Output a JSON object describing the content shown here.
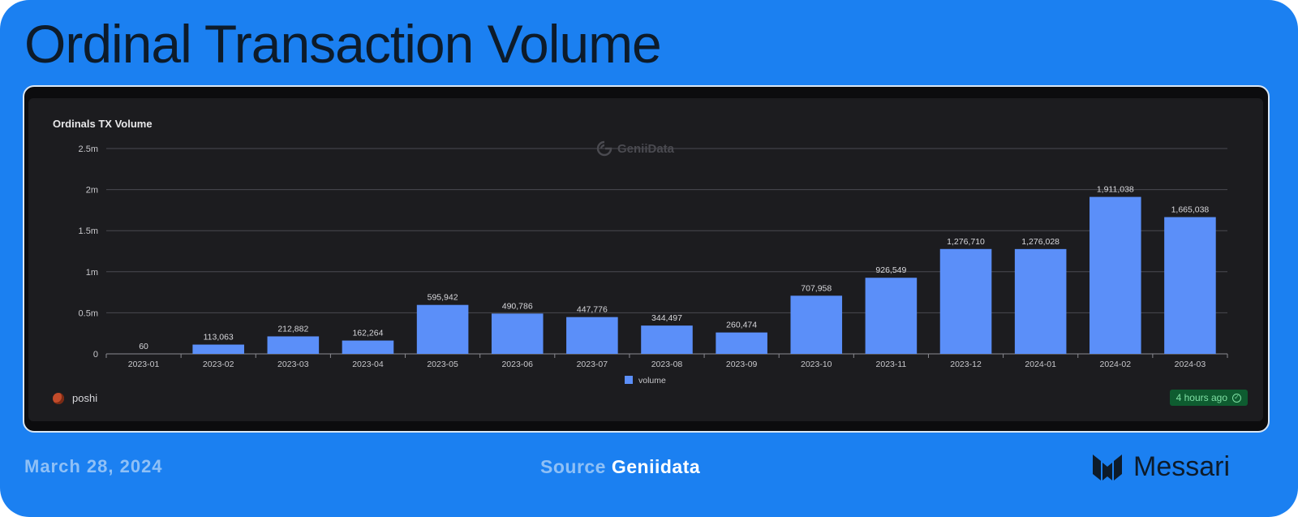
{
  "header": {
    "title": "Ordinal Transaction Volume"
  },
  "chart_panel": {
    "title": "Ordinals TX Volume",
    "watermark": "GeniiData",
    "author": "poshi",
    "refreshed": "4 hours ago"
  },
  "chart_data": {
    "type": "bar",
    "title": "Ordinals TX Volume",
    "categories": [
      "2023-01",
      "2023-02",
      "2023-03",
      "2023-04",
      "2023-05",
      "2023-06",
      "2023-07",
      "2023-08",
      "2023-09",
      "2023-10",
      "2023-11",
      "2023-12",
      "2024-01",
      "2024-02",
      "2024-03"
    ],
    "series": [
      {
        "name": "volume",
        "color": "#5b8ff9",
        "values": [
          60,
          113063,
          212882,
          162264,
          595942,
          490786,
          447776,
          344497,
          260474,
          707958,
          926549,
          1276710,
          1276028,
          1911038,
          1665038
        ],
        "labels": [
          "60",
          "113,063",
          "212,882",
          "162,264",
          "595,942",
          "490,786",
          "447,776",
          "344,497",
          "260,474",
          "707,958",
          "926,549",
          "1,276,710",
          "1,276,028",
          "1,911,038",
          "1,665,038"
        ]
      }
    ],
    "ylim": [
      0,
      2500000
    ],
    "yticks": [
      0,
      500000,
      1000000,
      1500000,
      2000000,
      2500000
    ],
    "ytick_labels": [
      "0",
      "0.5m",
      "1m",
      "1.5m",
      "2m",
      "2.5m"
    ],
    "xlabel": "",
    "ylabel": "",
    "legend": "bottom-center",
    "grid": true
  },
  "footer": {
    "date": "March 28, 2024",
    "source_label": "Source",
    "source_name": "Geniidata",
    "brand": "Messari"
  },
  "colors": {
    "background": "#1b80f1",
    "panel": "#1c1c1f",
    "bar": "#5b8ff9",
    "title_text": "#0d1b2a",
    "badge": "#0e5c30"
  }
}
